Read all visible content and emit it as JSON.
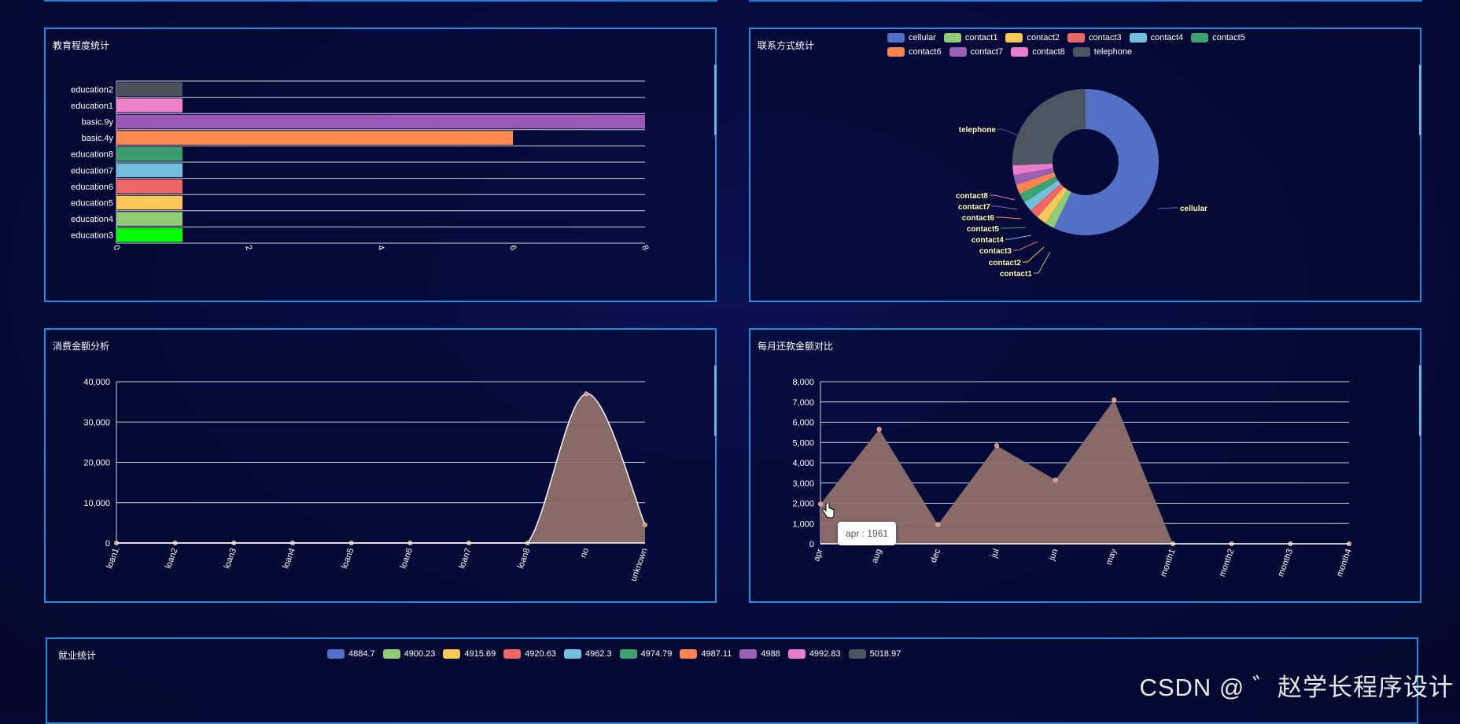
{
  "panels": {
    "education": {
      "title": "教育程度统计"
    },
    "contact": {
      "title": "联系方式统计"
    },
    "loan": {
      "title": "消费金额分析"
    },
    "monthly": {
      "title": "每月还款金额对比"
    },
    "employment": {
      "title": "就业统计"
    }
  },
  "tooltip": {
    "text": "apr : 1961"
  },
  "watermark": "CSDN @ ゛赵学长程序设计",
  "chart_data": [
    {
      "id": "education",
      "type": "bar",
      "orientation": "horizontal",
      "title": "教育程度统计",
      "categories": [
        "education2",
        "education1",
        "basic.9y",
        "basic.4y",
        "education8",
        "education7",
        "education6",
        "education5",
        "education4",
        "education3"
      ],
      "values": [
        1,
        1,
        8,
        6,
        1,
        1,
        1,
        1,
        1,
        1
      ],
      "colors": [
        "#4c525b",
        "#ee82c9",
        "#9b59b6",
        "#ff8a50",
        "#3b9b6d",
        "#73c0de",
        "#ee6666",
        "#fac858",
        "#91cc75",
        "#00ff00"
      ],
      "xlim": [
        0,
        8
      ],
      "xticks": [
        "0",
        "2",
        "4",
        "6",
        "8"
      ],
      "grid": true
    },
    {
      "id": "contact",
      "type": "pie",
      "donut": true,
      "title": "联系方式统计",
      "labels": [
        "cellular",
        "contact1",
        "contact2",
        "contact3",
        "contact4",
        "contact5",
        "contact6",
        "contact7",
        "contact8",
        "telephone"
      ],
      "values": [
        160,
        6,
        6,
        6,
        6,
        6,
        6,
        6,
        6,
        72
      ],
      "colors": [
        "#5470c6",
        "#91cc75",
        "#fac858",
        "#ee6666",
        "#73c0de",
        "#3ba272",
        "#fc8452",
        "#9a60b4",
        "#ea7ccc",
        "#4d5560"
      ],
      "legend_position": "top"
    },
    {
      "id": "loan",
      "type": "area",
      "smooth": true,
      "title": "消费金额分析",
      "categories": [
        "loan1",
        "loan2",
        "loan3",
        "loan4",
        "loan5",
        "loan6",
        "loan7",
        "loan8",
        "no",
        "unknown"
      ],
      "values": [
        0,
        0,
        0,
        0,
        0,
        0,
        0,
        0,
        37000,
        4500
      ],
      "ylim": [
        0,
        40000
      ],
      "yticks": [
        "0",
        "10,000",
        "20,000",
        "30,000",
        "40,000"
      ],
      "grid": true
    },
    {
      "id": "monthly",
      "type": "area",
      "smooth": false,
      "title": "每月还款金额对比",
      "categories": [
        "apr",
        "aug",
        "dec",
        "jul",
        "jun",
        "may",
        "month1",
        "month2",
        "month3",
        "month4"
      ],
      "values": [
        1961,
        5650,
        950,
        4850,
        3150,
        7100,
        0,
        0,
        0,
        0
      ],
      "ylim": [
        0,
        8000
      ],
      "yticks": [
        "0",
        "1,000",
        "2,000",
        "3,000",
        "4,000",
        "5,000",
        "6,000",
        "7,000",
        "8,000"
      ],
      "grid": true
    },
    {
      "id": "employment",
      "type": "pie",
      "title": "就业统计",
      "labels": [
        "4884.7",
        "4900.23",
        "4915.69",
        "4920.63",
        "4962.3",
        "4974.79",
        "4987.11",
        "4988",
        "4992.83",
        "5018.97"
      ],
      "colors": [
        "#5470c6",
        "#91cc75",
        "#fac858",
        "#ee6666",
        "#73c0de",
        "#3ba272",
        "#fc8452",
        "#9a60b4",
        "#ea7ccc",
        "#4d5560"
      ],
      "legend_position": "top"
    }
  ]
}
